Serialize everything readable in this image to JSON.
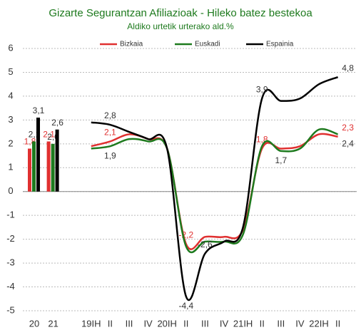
{
  "chart_data": {
    "type": "combo",
    "title": "Gizarte Segurantzan Afiliazioak - Hileko batez bestekoa",
    "subtitle": "Aldiko urtetik urterako ald.%",
    "ylim": [
      -5,
      6
    ],
    "yticks": [
      -5,
      -4,
      -3,
      -2,
      -1,
      0,
      1,
      2,
      3,
      4,
      5,
      6
    ],
    "grid": true,
    "legend": "top",
    "bars": {
      "type": "bar",
      "categories": [
        "20",
        "21"
      ],
      "series": [
        {
          "color": "#e03030",
          "values": [
            1.8,
            2.1
          ],
          "value_labels": [
            "1,8",
            "2,1"
          ]
        },
        {
          "color": "#1e7a1e",
          "values": [
            2.1,
            2.0
          ],
          "value_labels": [
            "2,1",
            "2,0"
          ]
        },
        {
          "color": "#000000",
          "values": [
            3.1,
            2.6
          ],
          "value_labels": [
            "3,1",
            "2,6"
          ]
        }
      ]
    },
    "lines": {
      "type": "line",
      "categories": [
        "19IH",
        "II",
        "III",
        "IV",
        "20IH",
        "II",
        "III",
        "IV",
        "21IH",
        "II",
        "III",
        "IV",
        "22IH",
        "II"
      ],
      "series": [
        {
          "name": "Bizkaia",
          "color": "#e03030",
          "values": [
            1.9,
            2.1,
            2.4,
            2.2,
            1.8,
            -2.2,
            -1.9,
            -1.9,
            -1.6,
            1.8,
            1.8,
            1.9,
            2.4,
            2.3
          ],
          "value_labels": [
            null,
            "2,1",
            null,
            null,
            null,
            "-2,2",
            null,
            null,
            null,
            "1,8",
            null,
            null,
            null,
            "2,3"
          ]
        },
        {
          "name": "Euskadi",
          "color": "#1e7a1e",
          "values": [
            1.8,
            1.9,
            2.2,
            2.1,
            1.8,
            -2.3,
            -2.1,
            -2.1,
            -1.8,
            1.9,
            1.7,
            1.8,
            2.6,
            2.4
          ],
          "value_labels": [
            null,
            "1,9",
            null,
            null,
            null,
            null,
            null,
            null,
            null,
            null,
            "1,7",
            null,
            null,
            "2,4"
          ]
        },
        {
          "name": "Espainia",
          "color": "#000000",
          "values": [
            2.9,
            2.8,
            2.5,
            2.2,
            1.8,
            -4.4,
            -2.6,
            -2.1,
            -1.5,
            3.9,
            3.8,
            3.9,
            4.5,
            4.8
          ],
          "value_labels": [
            null,
            "2,8",
            null,
            null,
            null,
            "-4,4",
            "-2,6",
            null,
            null,
            "3,9",
            null,
            null,
            null,
            "4,8"
          ]
        }
      ]
    }
  }
}
